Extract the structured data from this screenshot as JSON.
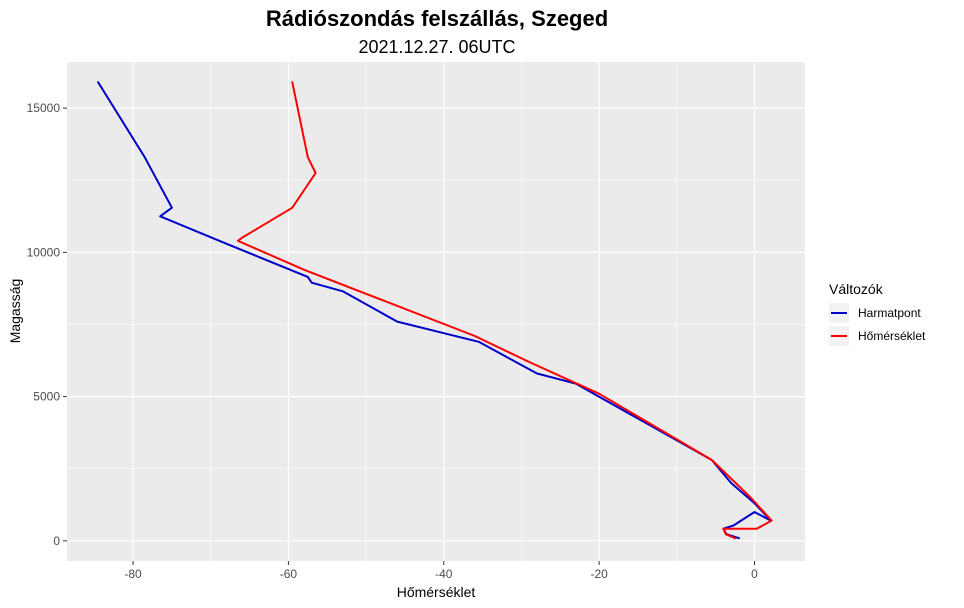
{
  "chart_data": {
    "type": "line",
    "title": "Rádiószondás felszállás, Szeged",
    "subtitle": "2021.12.27. 06UTC",
    "xlabel": "Hőmérséklet",
    "ylabel": "Magasság",
    "xlim": [
      -88.5,
      6.5
    ],
    "ylim": [
      -700,
      16600
    ],
    "xticks": [
      -80,
      -60,
      -40,
      -20,
      0
    ],
    "yticks": [
      0,
      5000,
      10000,
      15000
    ],
    "grid": true,
    "legend_title": "Változók",
    "legend_position": "right",
    "series": [
      {
        "name": "Harmatpont",
        "color": "#0000cc",
        "points": [
          [
            -2,
            90
          ],
          [
            -3.6,
            230
          ],
          [
            -4,
            420
          ],
          [
            -2.7,
            530
          ],
          [
            0,
            1000
          ],
          [
            2.1,
            700
          ],
          [
            0,
            1300
          ],
          [
            -3,
            2000
          ],
          [
            -5.5,
            2800
          ],
          [
            -23,
            5450
          ],
          [
            -28,
            5800
          ],
          [
            -35.5,
            6900
          ],
          [
            -46,
            7600
          ],
          [
            -53,
            8650
          ],
          [
            -57,
            8950
          ],
          [
            -57.5,
            9150
          ],
          [
            -68,
            10300
          ],
          [
            -76.5,
            11250
          ],
          [
            -75,
            11550
          ],
          [
            -78.5,
            13300
          ],
          [
            -84.5,
            15900
          ]
        ]
      },
      {
        "name": "Hőmérséklet",
        "color": "#ff0000",
        "points": [
          [
            -2.5,
            90
          ],
          [
            -3.7,
            230
          ],
          [
            -4,
            420
          ],
          [
            0.3,
            420
          ],
          [
            2.2,
            700
          ],
          [
            -0.5,
            1500
          ],
          [
            -5.5,
            2800
          ],
          [
            -20,
            5100
          ],
          [
            -29,
            6200
          ],
          [
            -36,
            7100
          ],
          [
            -58,
            9400
          ],
          [
            -66.5,
            10400
          ],
          [
            -66,
            10500
          ],
          [
            -59.5,
            11550
          ],
          [
            -56.5,
            12750
          ],
          [
            -57.5,
            13300
          ],
          [
            -59.5,
            15900
          ]
        ]
      }
    ]
  }
}
